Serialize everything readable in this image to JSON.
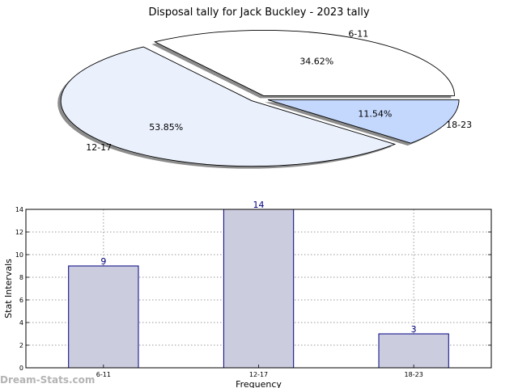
{
  "chart_data": [
    {
      "type": "pie",
      "title": "Disposal tally for Jack Buckley - 2023 tally",
      "categories": [
        "6-11",
        "12-17",
        "18-23"
      ],
      "values": [
        9,
        14,
        3
      ],
      "percent_labels": [
        "34.62%",
        "53.85%",
        "11.54%"
      ],
      "colors": [
        "#ffffff",
        "#eaf1fd",
        "#c4d8fe"
      ],
      "exploded": true,
      "shadow": true
    },
    {
      "type": "bar",
      "categories": [
        "6-11",
        "12-17",
        "18-23"
      ],
      "values": [
        9,
        14,
        3
      ],
      "xlabel": "Frequency",
      "ylabel": "Stat Intervals",
      "ylim": [
        0,
        14
      ],
      "yticks": [
        0,
        2,
        4,
        6,
        8,
        10,
        12,
        14
      ],
      "grid": true,
      "bar_color": "#ccccdf",
      "bar_edge_color": "#000080"
    }
  ],
  "watermark": "Dream-Stats.com"
}
